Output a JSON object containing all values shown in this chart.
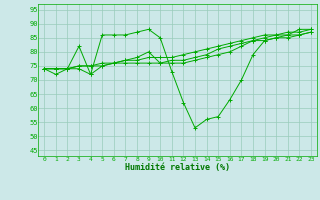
{
  "background_color": "#cce8e8",
  "grid_color": "#99ccbb",
  "line_color": "#00aa00",
  "xlabel": "Humidité relative (%)",
  "xlabel_color": "#007700",
  "yticks": [
    45,
    50,
    55,
    60,
    65,
    70,
    75,
    80,
    85,
    90,
    95
  ],
  "xticks": [
    0,
    1,
    2,
    3,
    4,
    5,
    6,
    7,
    8,
    9,
    10,
    11,
    12,
    13,
    14,
    15,
    16,
    17,
    18,
    19,
    20,
    21,
    22,
    23
  ],
  "xlim": [
    -0.5,
    23.5
  ],
  "ylim": [
    43,
    97
  ],
  "lines": [
    [
      74,
      72,
      74,
      74,
      72,
      86,
      86,
      86,
      87,
      88,
      85,
      73,
      62,
      53,
      56,
      57,
      63,
      70,
      79,
      84,
      85,
      86,
      88,
      88
    ],
    [
      74,
      74,
      74,
      75,
      75,
      75,
      76,
      76,
      76,
      76,
      76,
      77,
      77,
      78,
      79,
      81,
      82,
      83,
      84,
      84,
      85,
      85,
      86,
      87
    ],
    [
      74,
      74,
      74,
      75,
      75,
      76,
      76,
      77,
      77,
      78,
      78,
      78,
      79,
      80,
      81,
      82,
      83,
      84,
      85,
      86,
      86,
      87,
      87,
      88
    ],
    [
      74,
      74,
      74,
      82,
      72,
      75,
      76,
      77,
      78,
      80,
      76,
      76,
      76,
      77,
      78,
      79,
      80,
      82,
      84,
      85,
      86,
      86,
      86,
      87
    ]
  ]
}
